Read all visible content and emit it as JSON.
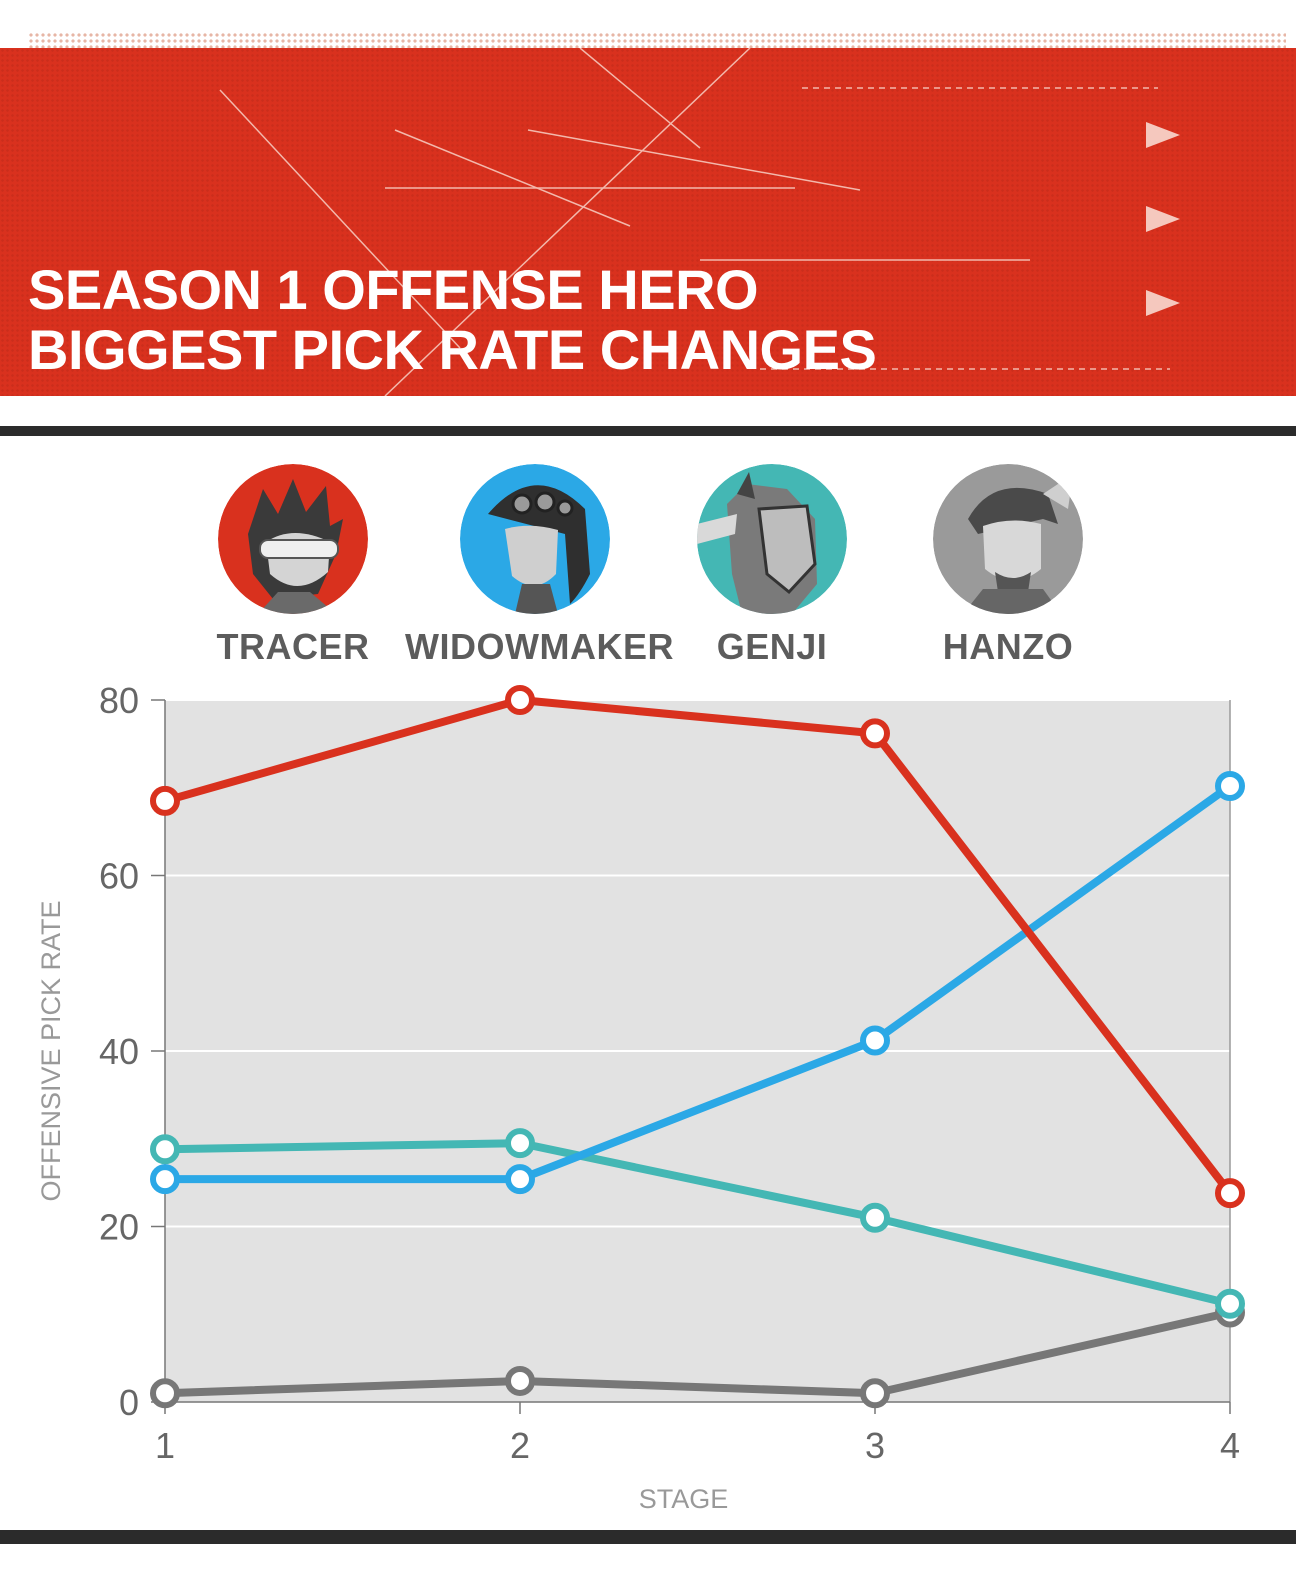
{
  "header": {
    "title_line1": "SEASON 1 OFFENSE HERO",
    "title_line2": "BIGGEST PICK RATE CHANGES"
  },
  "colors": {
    "header_bg": "#d9311e",
    "plot_bg": "#e2e2e2",
    "tracer": "#d9311e",
    "widowmaker": "#2ba8e6",
    "genji": "#44b7b4",
    "hanzo": "#777777"
  },
  "legend": [
    {
      "label": "TRACER",
      "color": "#d9311e",
      "icon": "tracer-portrait-icon"
    },
    {
      "label": "WIDOWMAKER",
      "color": "#2ba8e6",
      "icon": "widowmaker-portrait-icon"
    },
    {
      "label": "GENJI",
      "color": "#44b7b4",
      "icon": "genji-portrait-icon"
    },
    {
      "label": "HANZO",
      "color": "#8a8a8a",
      "icon": "hanzo-portrait-icon"
    }
  ],
  "chart_data": {
    "type": "line",
    "title": "SEASON 1 OFFENSE HERO BIGGEST PICK RATE CHANGES",
    "xlabel": "STAGE",
    "ylabel": "OFFENSIVE PICK RATE",
    "x": [
      1,
      2,
      3,
      4
    ],
    "xlim": [
      1,
      4
    ],
    "ylim": [
      0,
      80
    ],
    "y_ticks": [
      0,
      20,
      40,
      60,
      80
    ],
    "grid": true,
    "legend_position": "top",
    "series": [
      {
        "name": "TRACER",
        "color": "#d9311e",
        "values": [
          68.5,
          80,
          76.2,
          23.8
        ]
      },
      {
        "name": "WIDOWMAKER",
        "color": "#2ba8e6",
        "values": [
          25.4,
          25.4,
          41.2,
          70.2
        ]
      },
      {
        "name": "GENJI",
        "color": "#44b7b4",
        "values": [
          28.8,
          29.5,
          21,
          11.2
        ]
      },
      {
        "name": "HANZO",
        "color": "#777777",
        "values": [
          1,
          2.4,
          1,
          10.2
        ]
      }
    ]
  }
}
